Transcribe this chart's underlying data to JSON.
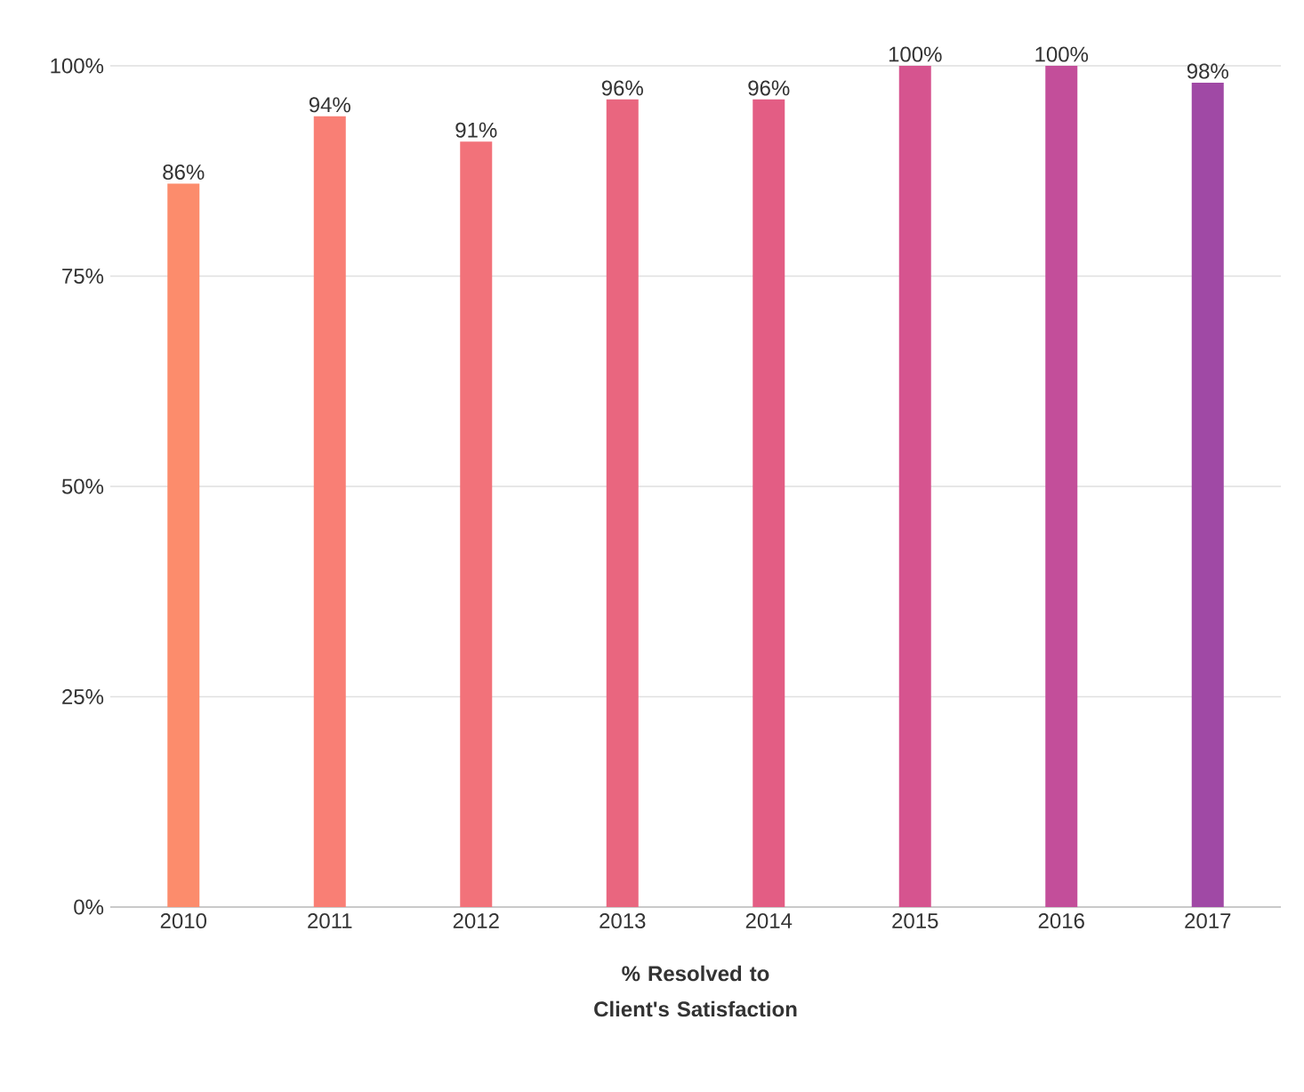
{
  "chart_data": {
    "type": "bar",
    "categories": [
      "2010",
      "2011",
      "2012",
      "2013",
      "2014",
      "2015",
      "2016",
      "2017"
    ],
    "values": [
      86,
      94,
      91,
      96,
      96,
      100,
      100,
      98
    ],
    "value_labels": [
      "86%",
      "94%",
      "91%",
      "96%",
      "96%",
      "100%",
      "100%",
      "98%"
    ],
    "colors": [
      "#fc8c6c",
      "#f97f75",
      "#f2727a",
      "#e9667f",
      "#e35d84",
      "#d6548f",
      "#c34e9a",
      "#a049a5"
    ],
    "xlabel": "% Resolved to Client's Satisfaction",
    "ylim": [
      0,
      100
    ],
    "yticks": [
      {
        "value": 0,
        "label": "0%"
      },
      {
        "value": 25,
        "label": "25%"
      },
      {
        "value": 50,
        "label": "50%"
      },
      {
        "value": 75,
        "label": "75%"
      },
      {
        "value": 100,
        "label": "100%"
      }
    ],
    "grid": "y"
  }
}
